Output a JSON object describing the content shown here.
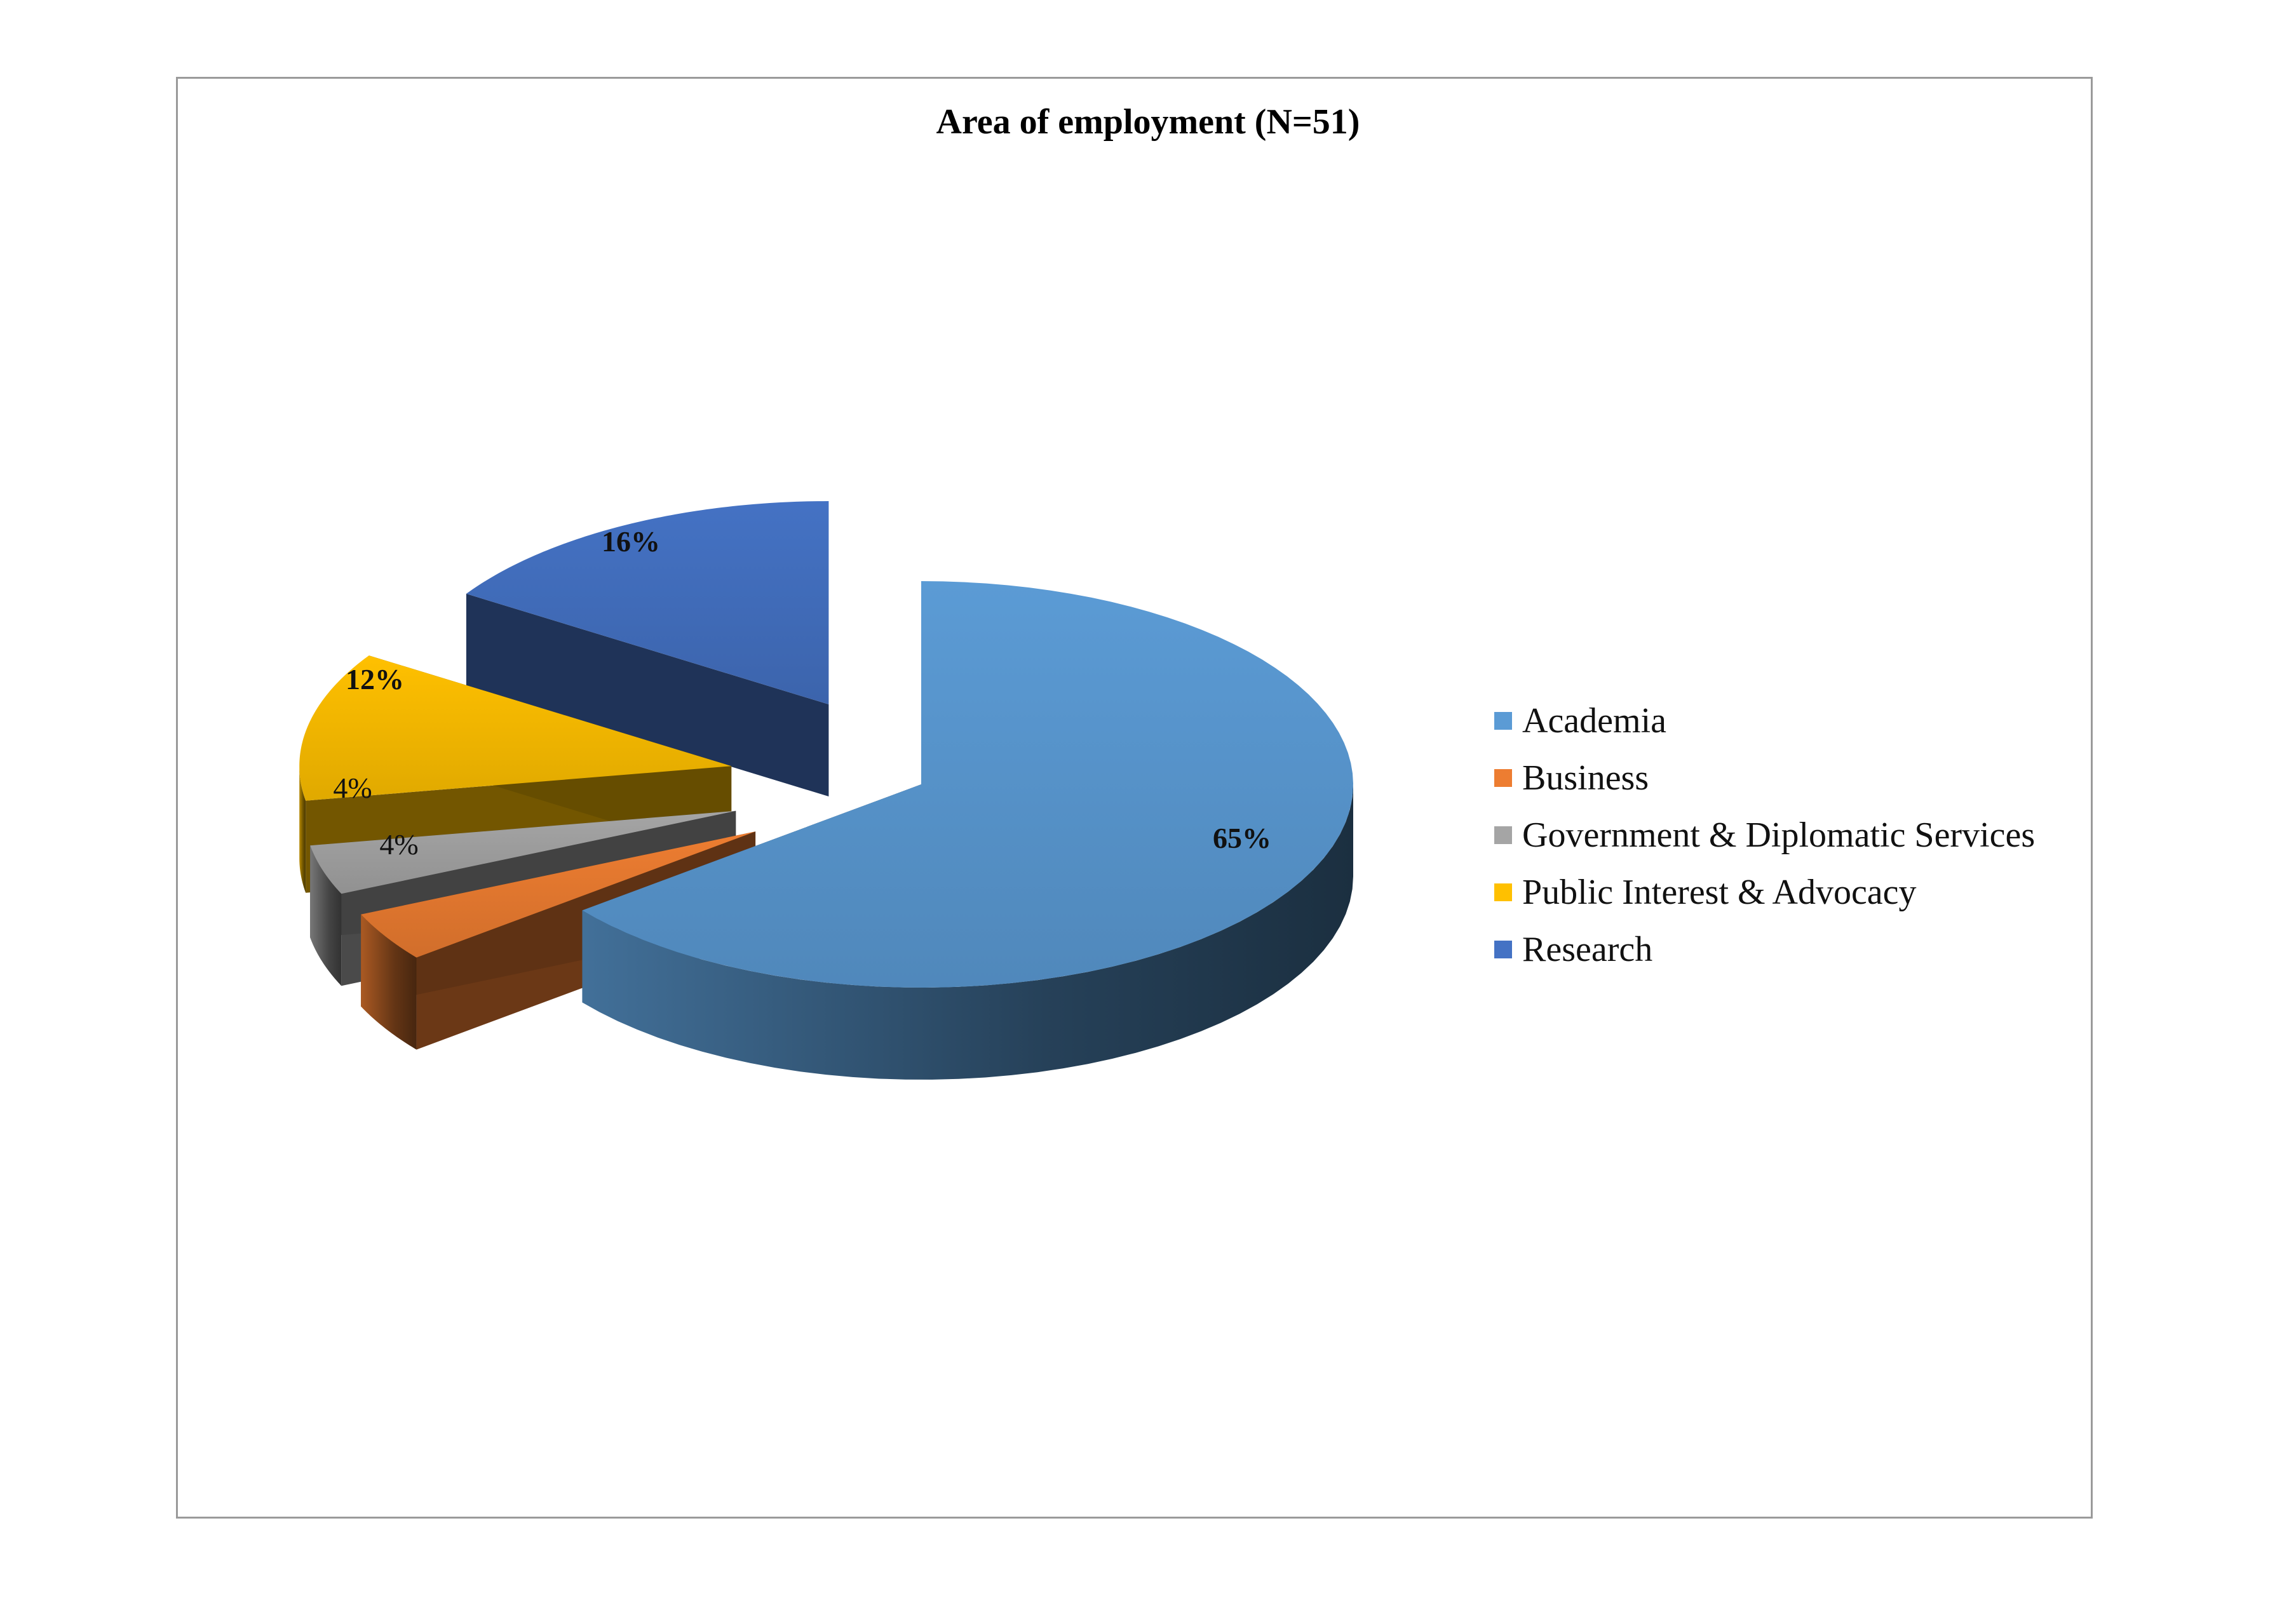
{
  "chart_data": {
    "type": "pie",
    "title": "Area of employment (N=51)",
    "categories": [
      "Academia",
      "Business",
      "Government & Diplomatic Services",
      "Public Interest & Advocacy",
      "Research"
    ],
    "values": [
      65,
      4,
      4,
      12,
      16
    ],
    "value_labels": [
      "65%",
      "4%",
      "4%",
      "12%",
      "16%"
    ],
    "colors": [
      "#5b9bd5",
      "#ed7d31",
      "#a5a5a5",
      "#ffc000",
      "#4472c4"
    ],
    "style": "3d-exploded",
    "legend": "right"
  }
}
